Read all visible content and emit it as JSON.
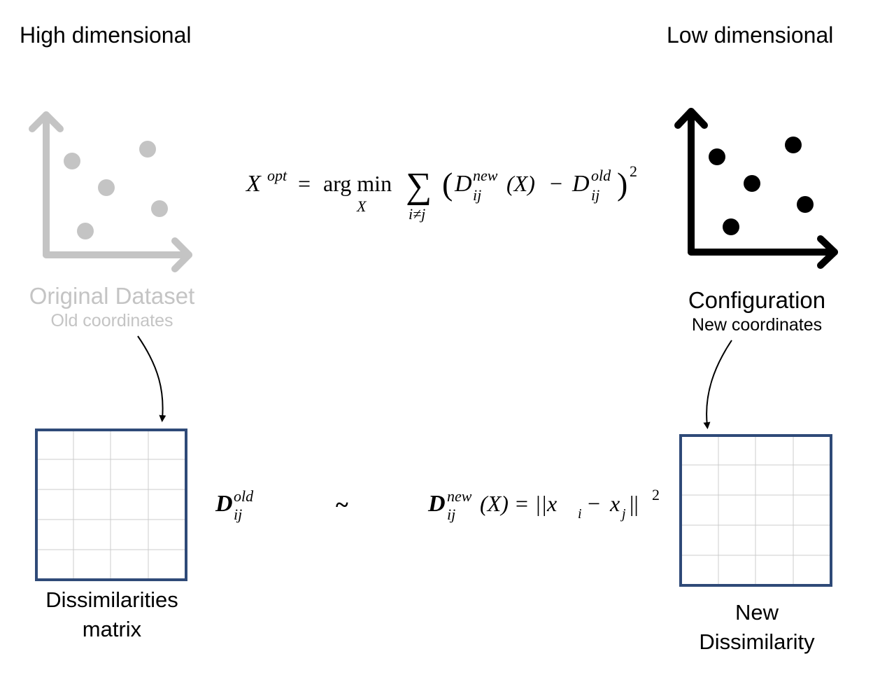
{
  "left": {
    "heading": "High dimensional",
    "plot_caption": "Original Dataset",
    "plot_subcaption": "Old coordinates",
    "matrix_label_line1": "Dissimilarities",
    "matrix_label_line2": "matrix",
    "color": "#c4c4c4"
  },
  "right": {
    "heading": "Low dimensional",
    "plot_caption": "Configuration",
    "plot_subcaption": "New coordinates",
    "matrix_label_line1": "New",
    "matrix_label_line2": "Dissimilarity",
    "color": "#000000"
  },
  "matrix_border_color": "#2f4a78",
  "formula": {
    "lhs": "X",
    "lhs_sup": "opt",
    "equals": "=",
    "argmin": "arg min",
    "argmin_sub": "X",
    "sum": "∑",
    "sum_sub": "i≠j",
    "d": "D",
    "sub_ij": "ij",
    "sup_new": "new",
    "sup_old": "old",
    "arg": "(X)",
    "minus": "−",
    "square": "2"
  },
  "relation": {
    "left_d": "D",
    "left_sub": "ij",
    "left_sup": "old",
    "tilde": "~",
    "right_d": "D",
    "right_sub": "ij",
    "right_sup": "new",
    "right_arg": "(X) = ||x",
    "xi_sub": "i",
    "xj": "x",
    "xj_sub": "j",
    "norm_close": "||",
    "square": "2"
  }
}
